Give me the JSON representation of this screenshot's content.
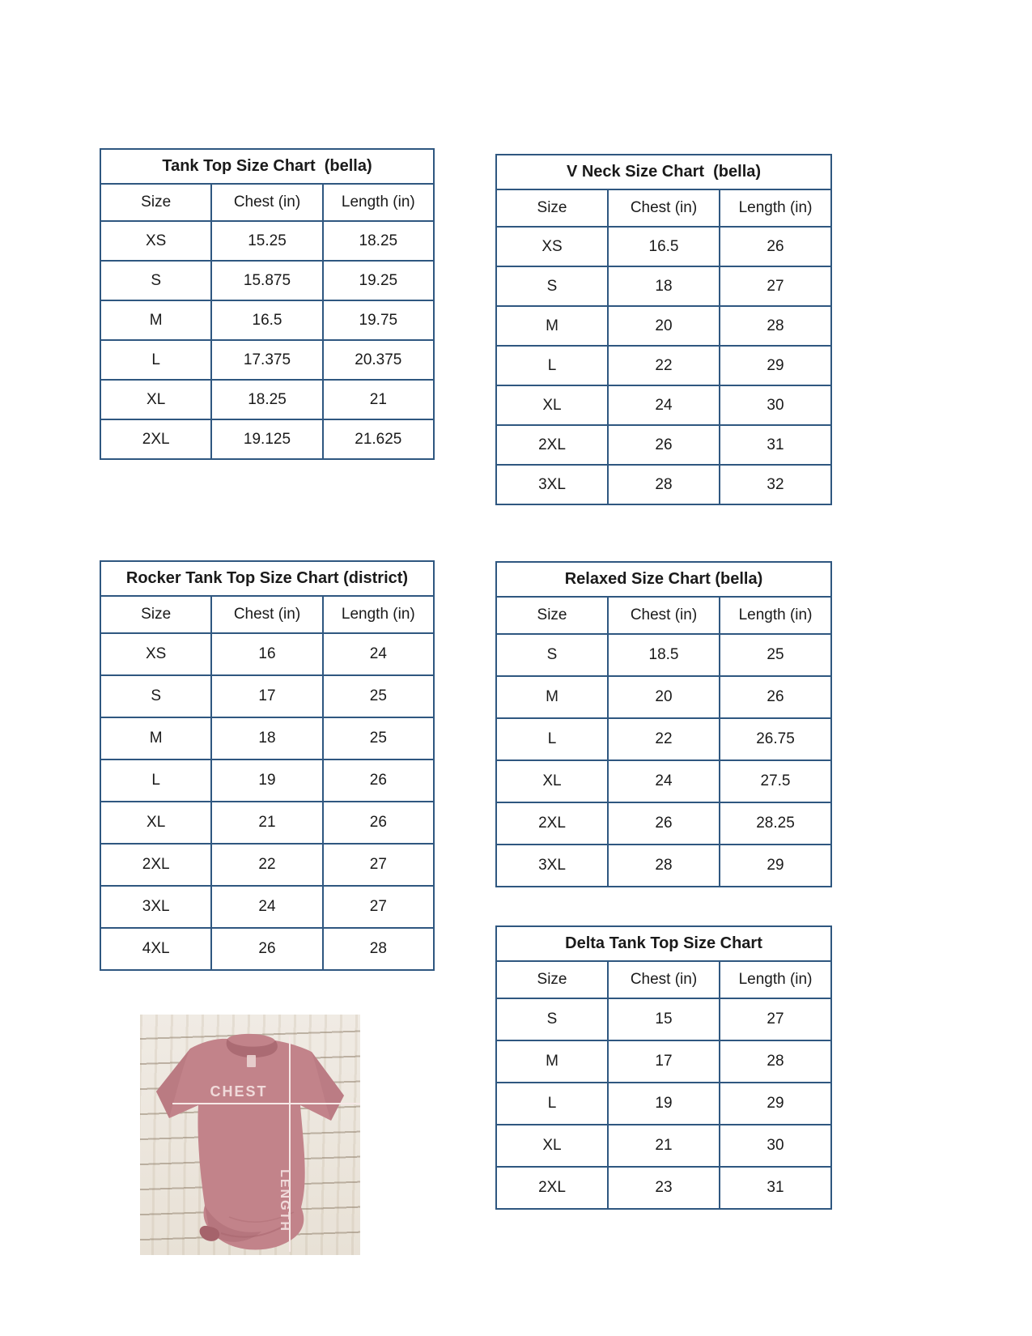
{
  "colors": {
    "table_border": "#2f5780",
    "text": "#1a1a1a",
    "shirt": "#c2838a",
    "shirt_shadow": "#a96a72",
    "measure_line": "#f6e9e7",
    "wood_background": "#efeae2"
  },
  "tables": [
    {
      "id": "tank-top",
      "title": "Tank Top Size Chart  (bella)",
      "columns": [
        "Size",
        "Chest (in)",
        "Length (in)"
      ],
      "rows": [
        [
          "XS",
          "15.25",
          "18.25"
        ],
        [
          "S",
          "15.875",
          "19.25"
        ],
        [
          "M",
          "16.5",
          "19.75"
        ],
        [
          "L",
          "17.375",
          "20.375"
        ],
        [
          "XL",
          "18.25",
          "21"
        ],
        [
          "2XL",
          "19.125",
          "21.625"
        ]
      ]
    },
    {
      "id": "v-neck",
      "title": "V Neck Size Chart  (bella)",
      "columns": [
        "Size",
        "Chest (in)",
        "Length (in)"
      ],
      "rows": [
        [
          "XS",
          "16.5",
          "26"
        ],
        [
          "S",
          "18",
          "27"
        ],
        [
          "M",
          "20",
          "28"
        ],
        [
          "L",
          "22",
          "29"
        ],
        [
          "XL",
          "24",
          "30"
        ],
        [
          "2XL",
          "26",
          "31"
        ],
        [
          "3XL",
          "28",
          "32"
        ]
      ]
    },
    {
      "id": "rocker-tank-top",
      "title": "Rocker Tank Top Size Chart (district)",
      "columns": [
        "Size",
        "Chest (in)",
        "Length (in)"
      ],
      "rows": [
        [
          "XS",
          "16",
          "24"
        ],
        [
          "S",
          "17",
          "25"
        ],
        [
          "M",
          "18",
          "25"
        ],
        [
          "L",
          "19",
          "26"
        ],
        [
          "XL",
          "21",
          "26"
        ],
        [
          "2XL",
          "22",
          "27"
        ],
        [
          "3XL",
          "24",
          "27"
        ],
        [
          "4XL",
          "26",
          "28"
        ]
      ]
    },
    {
      "id": "relaxed",
      "title": "Relaxed Size Chart (bella)",
      "columns": [
        "Size",
        "Chest (in)",
        "Length (in)"
      ],
      "rows": [
        [
          "S",
          "18.5",
          "25"
        ],
        [
          "M",
          "20",
          "26"
        ],
        [
          "L",
          "22",
          "26.75"
        ],
        [
          "XL",
          "24",
          "27.5"
        ],
        [
          "2XL",
          "26",
          "28.25"
        ],
        [
          "3XL",
          "28",
          "29"
        ]
      ]
    },
    {
      "id": "delta-tank-top",
      "title": "Delta Tank Top Size Chart",
      "columns": [
        "Size",
        "Chest (in)",
        "Length (in)"
      ],
      "rows": [
        [
          "S",
          "15",
          "27"
        ],
        [
          "M",
          "17",
          "28"
        ],
        [
          "L",
          "19",
          "29"
        ],
        [
          "XL",
          "21",
          "30"
        ],
        [
          "2XL",
          "23",
          "31"
        ]
      ]
    }
  ],
  "shirt_image": {
    "chest_label": "CHEST",
    "length_label": "LENGTH"
  }
}
